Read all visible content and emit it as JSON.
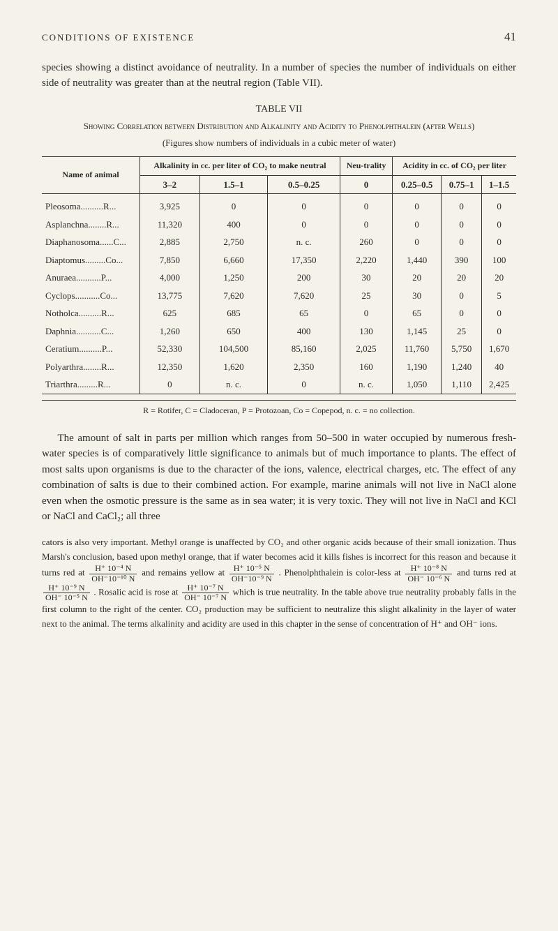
{
  "header": {
    "running_head": "CONDITIONS OF EXISTENCE",
    "page_number": "41"
  },
  "para1": "species showing a distinct avoidance of neutrality. In a number of species the number of individuals on either side of neutrality was greater than at the neutral region (Table VII).",
  "table": {
    "label": "TABLE VII",
    "title": "Showing Correlation between Distribution and Alkalinity and Acidity to Phenolphthalein (after Wells)",
    "subtitle": "(Figures show numbers of individuals in a cubic meter of water)",
    "name_header": "Name of animal",
    "alk_header": "Alkalinity in cc. per liter of CO₂ to make neutral",
    "neu_header": "Neu-trality",
    "acid_header": "Acidity in cc. of CO₂ per liter",
    "sub_headers": [
      "3–2",
      "1.5–1",
      "0.5–0.25",
      "0",
      "0.25–0.5",
      "0.75–1",
      "1–1.5"
    ],
    "rows": [
      {
        "name": "Pleosoma",
        "type": "R",
        "vals": [
          "3,925",
          "0",
          "0",
          "0",
          "0",
          "0",
          "0"
        ]
      },
      {
        "name": "Asplanchna",
        "type": "R",
        "vals": [
          "11,320",
          "400",
          "0",
          "0",
          "0",
          "0",
          "0"
        ]
      },
      {
        "name": "Diaphanosoma",
        "type": "C",
        "vals": [
          "2,885",
          "2,750",
          "n. c.",
          "260",
          "0",
          "0",
          "0"
        ]
      },
      {
        "name": "Diaptomus",
        "type": "Co",
        "vals": [
          "7,850",
          "6,660",
          "17,350",
          "2,220",
          "1,440",
          "390",
          "100"
        ]
      },
      {
        "name": "Anuraea",
        "type": "P",
        "vals": [
          "4,000",
          "1,250",
          "200",
          "30",
          "20",
          "20",
          "20"
        ]
      },
      {
        "name": "Cyclops",
        "type": "Co",
        "vals": [
          "13,775",
          "7,620",
          "7,620",
          "25",
          "30",
          "0",
          "5"
        ]
      },
      {
        "name": "Notholca",
        "type": "R",
        "vals": [
          "625",
          "685",
          "65",
          "0",
          "65",
          "0",
          "0"
        ]
      },
      {
        "name": "Daphnia",
        "type": "C",
        "vals": [
          "1,260",
          "650",
          "400",
          "130",
          "1,145",
          "25",
          "0"
        ]
      },
      {
        "name": "Ceratium",
        "type": "P",
        "vals": [
          "52,330",
          "104,500",
          "85,160",
          "2,025",
          "11,760",
          "5,750",
          "1,670"
        ]
      },
      {
        "name": "Polyarthra",
        "type": "R",
        "vals": [
          "12,350",
          "1,620",
          "2,350",
          "160",
          "1,190",
          "1,240",
          "40"
        ]
      },
      {
        "name": "Triarthra",
        "type": "R",
        "vals": [
          "0",
          "n. c.",
          "0",
          "n. c.",
          "1,050",
          "1,110",
          "2,425"
        ]
      }
    ],
    "footnote": "R = Rotifer, C = Cladoceran, P = Protozoan, Co = Copepod, n. c. = no collection."
  },
  "para2": "The amount of salt in parts per million which ranges from 50–500 in water occupied by numerous fresh-water species is of comparatively little significance to animals but of much importance to plants. The effect of most salts upon organisms is due to the character of the ions, valence, electrical charges, etc. The effect of any combination of salts is due to their combined action. For example, marine animals will not live in NaCl alone even when the osmotic pressure is the same as in sea water; it is very toxic. They will not live in NaCl and KCl or NaCl and CaCl₂; all three",
  "footnote": {
    "f1": "cators is also very important. Methyl orange is unaffected by CO₂ and other organic acids because of their small ionization. Thus Marsh's conclusion, based upon methyl orange, that if water becomes acid it kills fishes is incorrect for this reason and because it turns red at",
    "frac1_num": "H⁺ 10⁻⁴ N",
    "frac1_den": "OH⁻10⁻¹⁰ N",
    "f2": "and remains yellow at",
    "frac2_num": "H⁺ 10⁻⁵ N",
    "frac2_den": "OH⁻10⁻⁹ N",
    "f3": ". Phenolphthalein is color-less at",
    "frac3_num": "H⁺ 10⁻⁸ N",
    "frac3_den": "OH⁻ 10⁻⁶ N",
    "f4": "and turns red at",
    "frac4_num": "H⁺ 10⁻⁹ N",
    "frac4_den": "OH⁻ 10⁻⁵ N",
    "f5": ". Rosalic acid is rose at",
    "frac5_num": "H⁺ 10⁻⁷ N",
    "frac5_den": "OH⁻ 10⁻⁷ N",
    "f6": "which is true neutrality. In the table above true neutrality probably falls in the first column to the right of the center. CO₂ production may be sufficient to neutralize this slight alkalinity in the layer of water next to the animal. The terms alkalinity and acidity are used in this chapter in the sense of concentration of H⁺ and OH⁻ ions."
  }
}
